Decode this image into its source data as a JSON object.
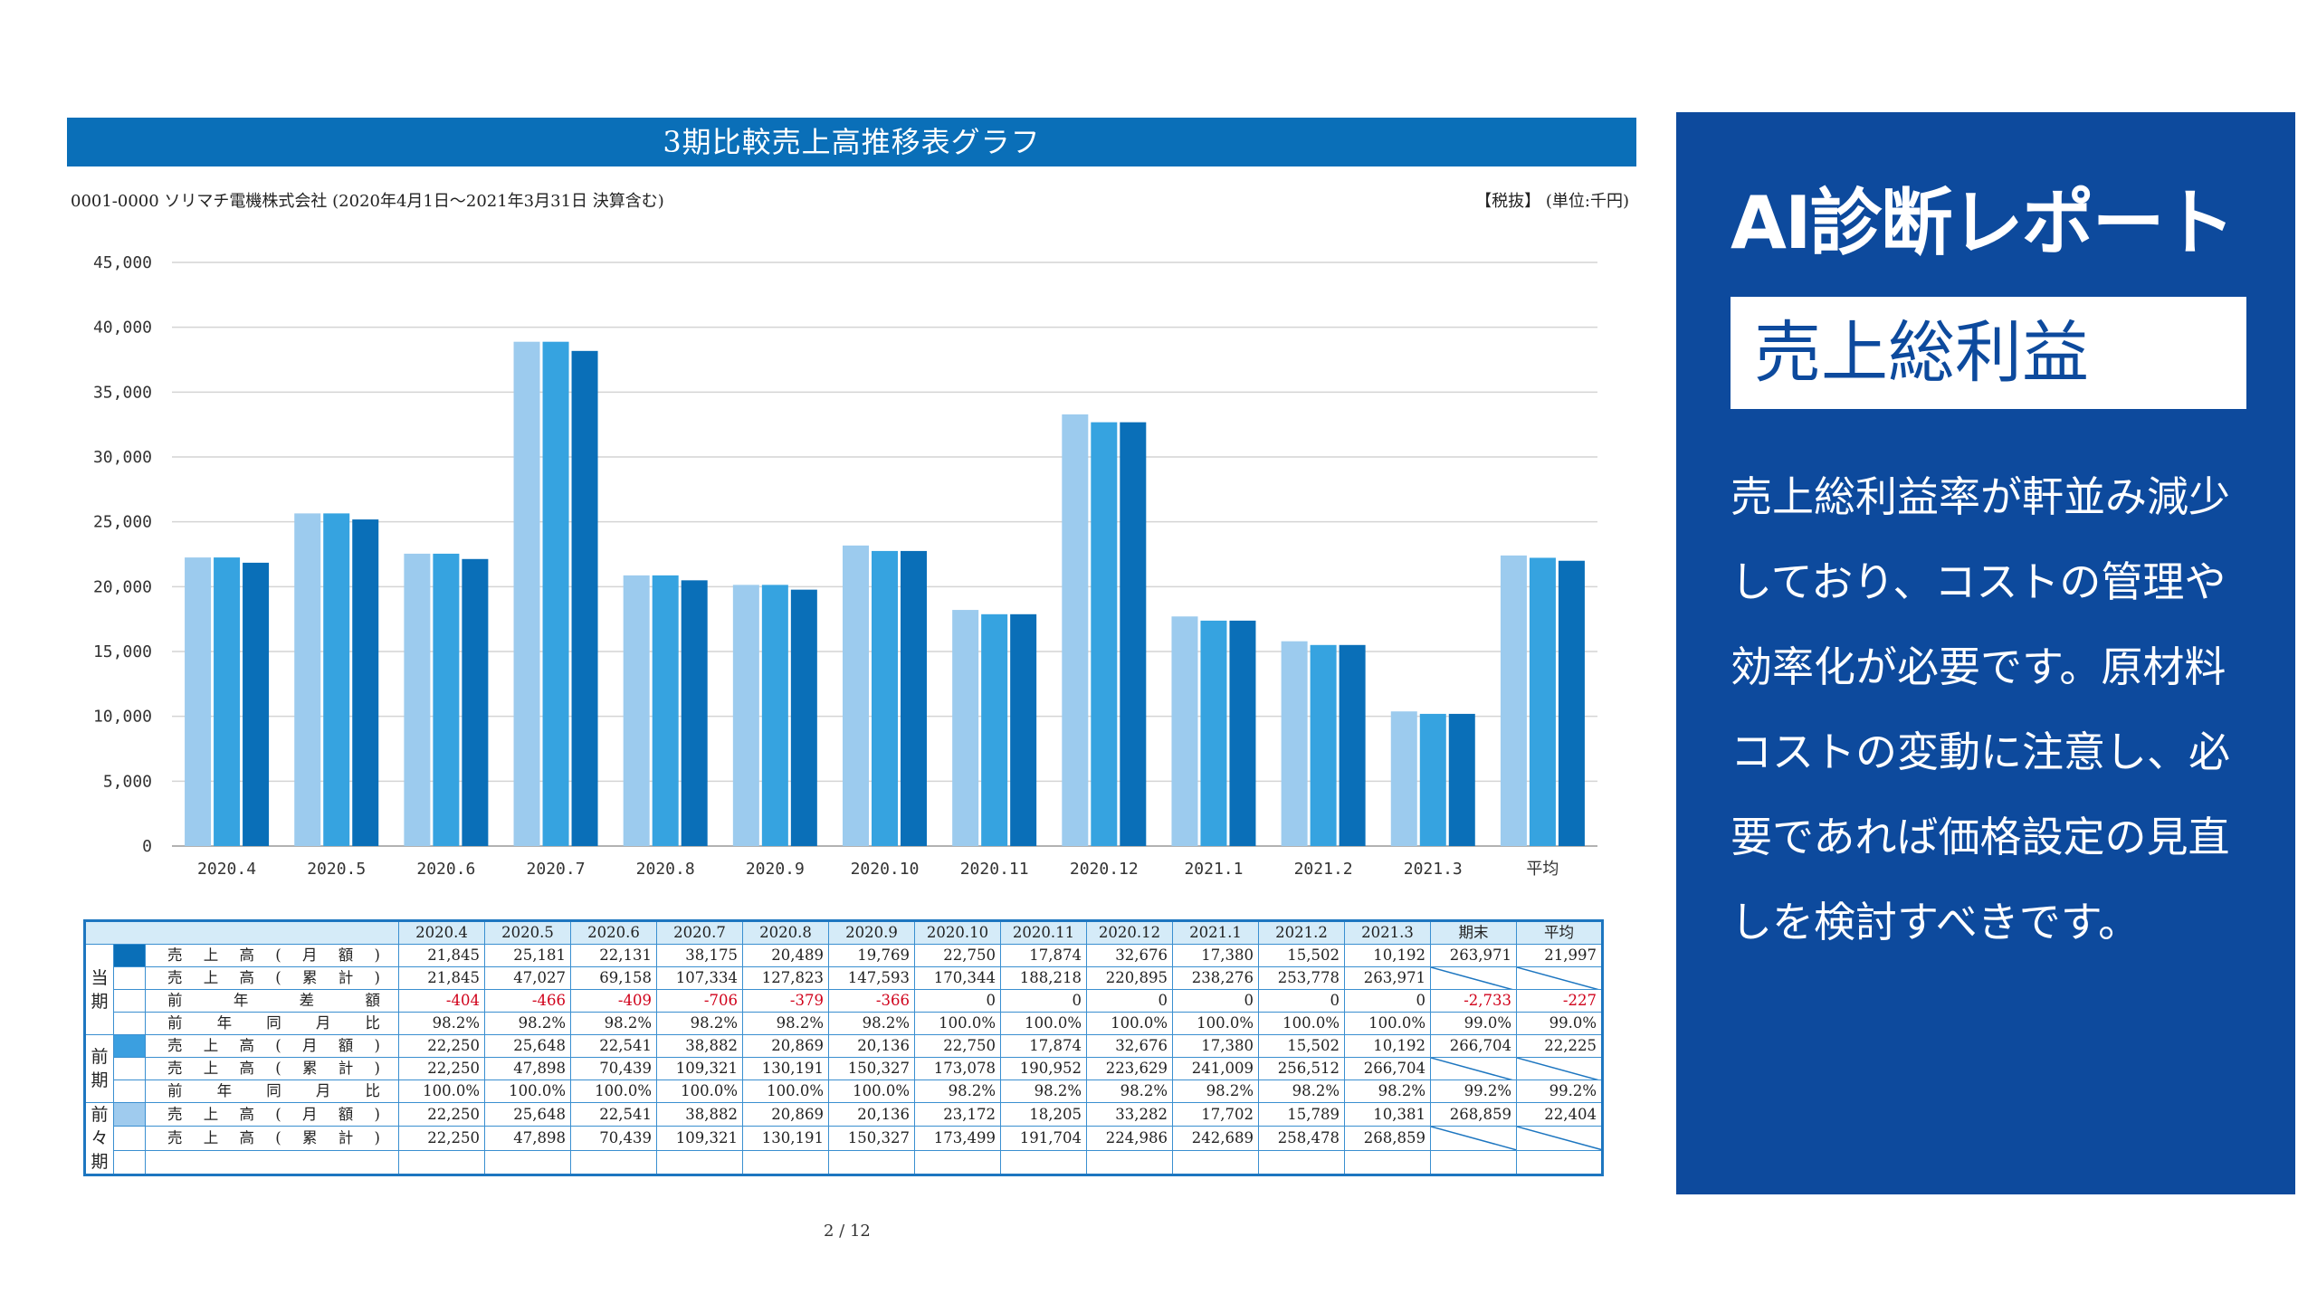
{
  "header": {
    "title": "3期比較売上高推移表グラフ",
    "company": "0001-0000 ソリマチ電機株式会社 (2020年4月1日～2021年3月31日 決算含む)",
    "unit": "【税抜】 (単位:千円)"
  },
  "colors": {
    "current": "#0a6fb8",
    "previous": "#36a3e0",
    "two_prior": "#9ccbee",
    "panel": "#0d4a9d"
  },
  "chart_data": {
    "type": "bar",
    "categories": [
      "2020.4",
      "2020.5",
      "2020.6",
      "2020.7",
      "2020.8",
      "2020.9",
      "2020.10",
      "2020.11",
      "2020.12",
      "2021.1",
      "2021.2",
      "2021.3",
      "平均"
    ],
    "series": [
      {
        "values": [
          22250,
          25648,
          22541,
          38882,
          20869,
          20136,
          23172,
          18205,
          33282,
          17702,
          15789,
          10381,
          22404
        ]
      },
      {
        "values": [
          22250,
          25648,
          22541,
          38882,
          20869,
          20136,
          22750,
          17874,
          32676,
          17380,
          15502,
          10192,
          22225
        ]
      },
      {
        "values": [
          21845,
          25181,
          22131,
          38175,
          20489,
          19769,
          22750,
          17874,
          32676,
          17380,
          15502,
          10192,
          21997
        ]
      }
    ],
    "yticks": [
      "0",
      "5,000",
      "10,000",
      "15,000",
      "20,000",
      "25,000",
      "30,000",
      "35,000",
      "40,000",
      "45,000"
    ],
    "ylim": [
      0,
      45000
    ],
    "grid": true
  },
  "table": {
    "headers": [
      "2020.4",
      "2020.5",
      "2020.6",
      "2020.7",
      "2020.8",
      "2020.9",
      "2020.10",
      "2020.11",
      "2020.12",
      "2021.1",
      "2021.2",
      "2021.3",
      "期末",
      "平均"
    ],
    "groups": [
      {
        "period": [
          "当",
          "期"
        ],
        "rows": [
          {
            "label": "売上高(月額)",
            "values": [
              "21,845",
              "25,181",
              "22,131",
              "38,175",
              "20,489",
              "19,769",
              "22,750",
              "17,874",
              "32,676",
              "17,380",
              "15,502",
              "10,192",
              "263,971",
              "21,997"
            ]
          },
          {
            "label": "売上高(累計)",
            "values": [
              "21,845",
              "47,027",
              "69,158",
              "107,334",
              "127,823",
              "147,593",
              "170,344",
              "188,218",
              "220,895",
              "238,276",
              "253,778",
              "263,971",
              "",
              ""
            ]
          },
          {
            "label": "前年差額",
            "values": [
              "-404",
              "-466",
              "-409",
              "-706",
              "-379",
              "-366",
              "0",
              "0",
              "0",
              "0",
              "0",
              "0",
              "-2,733",
              "-227"
            ]
          },
          {
            "label": "前年同月比",
            "values": [
              "98.2%",
              "98.2%",
              "98.2%",
              "98.2%",
              "98.2%",
              "98.2%",
              "100.0%",
              "100.0%",
              "100.0%",
              "100.0%",
              "100.0%",
              "100.0%",
              "99.0%",
              "99.0%"
            ]
          }
        ]
      },
      {
        "period": [
          "前",
          "期"
        ],
        "rows": [
          {
            "label": "売上高(月額)",
            "values": [
              "22,250",
              "25,648",
              "22,541",
              "38,882",
              "20,869",
              "20,136",
              "22,750",
              "17,874",
              "32,676",
              "17,380",
              "15,502",
              "10,192",
              "266,704",
              "22,225"
            ]
          },
          {
            "label": "売上高(累計)",
            "values": [
              "22,250",
              "47,898",
              "70,439",
              "109,321",
              "130,191",
              "150,327",
              "173,078",
              "190,952",
              "223,629",
              "241,009",
              "256,512",
              "266,704",
              "",
              ""
            ]
          },
          {
            "label": "前年同月比",
            "values": [
              "100.0%",
              "100.0%",
              "100.0%",
              "100.0%",
              "100.0%",
              "100.0%",
              "98.2%",
              "98.2%",
              "98.2%",
              "98.2%",
              "98.2%",
              "98.2%",
              "99.2%",
              "99.2%"
            ]
          }
        ]
      },
      {
        "period": [
          "前",
          "々",
          "期"
        ],
        "rows": [
          {
            "label": "売上高(月額)",
            "values": [
              "22,250",
              "25,648",
              "22,541",
              "38,882",
              "20,869",
              "20,136",
              "23,172",
              "18,205",
              "33,282",
              "17,702",
              "15,789",
              "10,381",
              "268,859",
              "22,404"
            ]
          },
          {
            "label": "売上高(累計)",
            "values": [
              "22,250",
              "47,898",
              "70,439",
              "109,321",
              "130,191",
              "150,327",
              "173,499",
              "191,704",
              "224,986",
              "242,689",
              "258,478",
              "268,859",
              "",
              ""
            ]
          },
          {
            "label": "",
            "values": [
              "",
              "",
              "",
              "",
              "",
              "",
              "",
              "",
              "",
              "",
              "",
              "",
              "",
              ""
            ]
          }
        ]
      }
    ]
  },
  "page": "2 / 12",
  "ai_panel": {
    "title": "AI診断レポート",
    "topic": "売上総利益",
    "body": "売上総利益率が軒並み減少しており、コストの管理や効率化が必要です。原材料コストの変動に注意し、必要であれば価格設定の見直しを検討すべきです。"
  }
}
